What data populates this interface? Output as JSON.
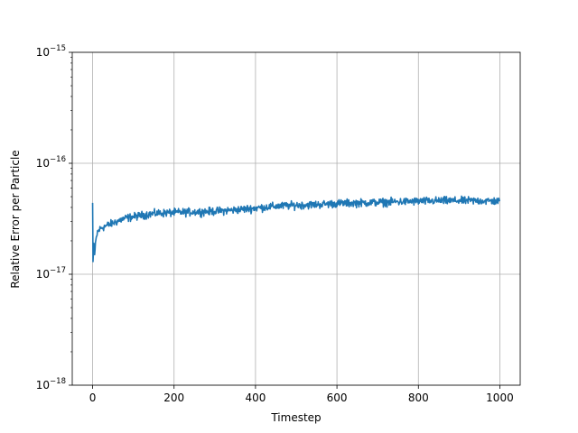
{
  "chart_data": {
    "type": "line",
    "title": "",
    "xlabel": "Timestep",
    "ylabel": "Relative Error per Particle",
    "xlim": [
      -50,
      1050
    ],
    "ylim": [
      1e-18,
      1e-15
    ],
    "yscale": "log",
    "grid": true,
    "x_ticks": [
      {
        "value": 0,
        "label": "0"
      },
      {
        "value": 200,
        "label": "200"
      },
      {
        "value": 400,
        "label": "400"
      },
      {
        "value": 600,
        "label": "600"
      },
      {
        "value": 800,
        "label": "800"
      },
      {
        "value": 1000,
        "label": "1000"
      }
    ],
    "y_ticks": [
      {
        "value": 1e-18,
        "base": "10",
        "exp": "−18"
      },
      {
        "value": 1e-17,
        "base": "10",
        "exp": "−17"
      },
      {
        "value": 1e-16,
        "base": "10",
        "exp": "−16"
      },
      {
        "value": 1e-15,
        "base": "10",
        "exp": "−15"
      }
    ],
    "series": [
      {
        "color": "#1f77b4",
        "trend_points": [
          [
            0,
            4.4e-17
          ],
          [
            1,
            1.3e-17
          ],
          [
            3,
            1.9e-17
          ],
          [
            5,
            1.5e-17
          ],
          [
            8,
            2e-17
          ],
          [
            12,
            2.4e-17
          ],
          [
            20,
            2.6e-17
          ],
          [
            40,
            2.8e-17
          ],
          [
            60,
            3e-17
          ],
          [
            80,
            3.2e-17
          ],
          [
            100,
            3.3e-17
          ],
          [
            130,
            3.45e-17
          ],
          [
            160,
            3.55e-17
          ],
          [
            200,
            3.6e-17
          ],
          [
            250,
            3.65e-17
          ],
          [
            300,
            3.7e-17
          ],
          [
            350,
            3.8e-17
          ],
          [
            400,
            3.95e-17
          ],
          [
            450,
            4.1e-17
          ],
          [
            500,
            4.2e-17
          ],
          [
            550,
            4.25e-17
          ],
          [
            600,
            4.35e-17
          ],
          [
            650,
            4.4e-17
          ],
          [
            700,
            4.45e-17
          ],
          [
            750,
            4.5e-17
          ],
          [
            800,
            4.55e-17
          ],
          [
            850,
            4.6e-17
          ],
          [
            900,
            4.6e-17
          ],
          [
            950,
            4.6e-17
          ],
          [
            1000,
            4.55e-17
          ]
        ],
        "noise_fraction": 0.1,
        "x_start": 0,
        "x_end": 1000
      }
    ]
  }
}
